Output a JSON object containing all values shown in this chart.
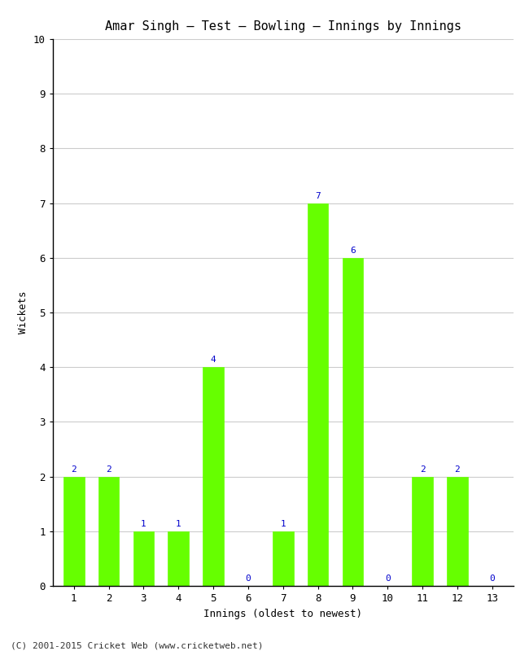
{
  "title": "Amar Singh – Test – Bowling – Innings by Innings",
  "xlabel": "Innings (oldest to newest)",
  "ylabel": "Wickets",
  "categories": [
    "1",
    "2",
    "3",
    "4",
    "5",
    "6",
    "7",
    "8",
    "9",
    "10",
    "11",
    "12",
    "13"
  ],
  "values": [
    2,
    2,
    1,
    1,
    4,
    0,
    1,
    7,
    6,
    0,
    2,
    2,
    0
  ],
  "bar_color": "#66ff00",
  "bar_edge_color": "#66ff00",
  "label_color": "#0000cc",
  "label_fontsize": 8,
  "ylim": [
    0,
    10
  ],
  "yticks": [
    0,
    1,
    2,
    3,
    4,
    5,
    6,
    7,
    8,
    9,
    10
  ],
  "grid_color": "#cccccc",
  "background_color": "#ffffff",
  "title_fontsize": 11,
  "axis_label_fontsize": 9,
  "tick_fontsize": 9,
  "footer": "(C) 2001-2015 Cricket Web (www.cricketweb.net)",
  "footer_fontsize": 8
}
